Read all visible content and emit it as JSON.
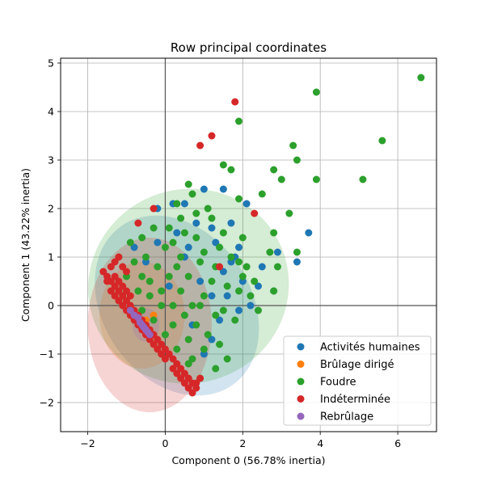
{
  "chart_data": {
    "type": "scatter",
    "title": "Row principal coordinates",
    "xlabel": "Component 0 (56.78% inertia)",
    "ylabel": "Component 1 (43.22% inertia)",
    "xlim": [
      -2.7,
      7.0
    ],
    "ylim": [
      -2.6,
      5.1
    ],
    "xticks": [
      -2,
      0,
      2,
      4,
      6
    ],
    "yticks": [
      -2,
      -1,
      0,
      1,
      2,
      3,
      4,
      5
    ],
    "grid": true,
    "legend_position": "lower-right",
    "series": [
      {
        "name": "Activités humaines",
        "color": "#1f77b4",
        "ellipse": {
          "cx": 0.3,
          "cy": 0.0,
          "rx": 1.9,
          "ry": 2.0,
          "angle": -35
        },
        "points": [
          [
            1.0,
            2.4
          ],
          [
            1.5,
            2.4
          ],
          [
            2.1,
            2.1
          ],
          [
            1.7,
            1.7
          ],
          [
            1.2,
            1.6
          ],
          [
            0.8,
            1.7
          ],
          [
            0.5,
            2.1
          ],
          [
            0.2,
            2.1
          ],
          [
            -0.2,
            2.0
          ],
          [
            1.9,
            1.2
          ],
          [
            1.7,
            0.9
          ],
          [
            2.5,
            0.8
          ],
          [
            2.9,
            1.1
          ],
          [
            3.4,
            0.9
          ],
          [
            3.7,
            1.5
          ],
          [
            2.4,
            0.4
          ],
          [
            2.8,
            0.3
          ],
          [
            2.2,
            0.0
          ],
          [
            1.9,
            -0.1
          ],
          [
            1.4,
            -0.3
          ],
          [
            1.2,
            -0.7
          ],
          [
            1.0,
            -1.0
          ],
          [
            1.2,
            0.2
          ],
          [
            0.9,
            0.5
          ],
          [
            0.5,
            1.0
          ],
          [
            0.3,
            1.5
          ],
          [
            -0.2,
            1.3
          ],
          [
            1.5,
            0.7
          ],
          [
            0.7,
            -0.4
          ],
          [
            -0.5,
            0.9
          ],
          [
            -0.8,
            1.2
          ],
          [
            0.1,
            0.4
          ],
          [
            1.3,
            1.3
          ],
          [
            1.8,
            1.0
          ],
          [
            2.0,
            0.5
          ],
          [
            1.6,
            0.2
          ],
          [
            0.6,
            1.2
          ]
        ]
      },
      {
        "name": "Brûlage dirigé",
        "color": "#ff7f0e",
        "ellipse": {
          "cx": -0.6,
          "cy": -0.2,
          "rx": 1.1,
          "ry": 1.1,
          "angle": 0
        },
        "points": [
          [
            -0.5,
            -0.3
          ],
          [
            -0.4,
            -0.5
          ],
          [
            -0.3,
            -0.2
          ]
        ]
      },
      {
        "name": "Foudre",
        "color": "#2ca02c",
        "ellipse": {
          "cx": 0.6,
          "cy": 0.4,
          "rx": 2.6,
          "ry": 2.0,
          "angle": -20
        },
        "points": [
          [
            6.6,
            4.7
          ],
          [
            3.9,
            4.4
          ],
          [
            5.6,
            3.4
          ],
          [
            1.9,
            3.8
          ],
          [
            3.3,
            3.3
          ],
          [
            3.4,
            3.0
          ],
          [
            1.5,
            2.9
          ],
          [
            1.7,
            2.8
          ],
          [
            2.8,
            2.8
          ],
          [
            3.0,
            2.6
          ],
          [
            3.9,
            2.6
          ],
          [
            5.1,
            2.6
          ],
          [
            0.6,
            2.5
          ],
          [
            1.9,
            2.2
          ],
          [
            2.5,
            2.3
          ],
          [
            3.2,
            1.9
          ],
          [
            2.8,
            1.5
          ],
          [
            3.4,
            1.1
          ],
          [
            2.0,
            1.4
          ],
          [
            2.7,
            1.1
          ],
          [
            2.9,
            0.8
          ],
          [
            2.8,
            0.3
          ],
          [
            2.4,
            -0.1
          ],
          [
            2.2,
            0.2
          ],
          [
            1.9,
            0.9
          ],
          [
            2.0,
            0.6
          ],
          [
            1.6,
            0.4
          ],
          [
            1.3,
            0.8
          ],
          [
            1.0,
            1.1
          ],
          [
            1.1,
            2.0
          ],
          [
            0.7,
            2.3
          ],
          [
            0.3,
            2.1
          ],
          [
            0.1,
            1.6
          ],
          [
            0.4,
            1.8
          ],
          [
            0.8,
            1.9
          ],
          [
            1.2,
            1.8
          ],
          [
            1.5,
            1.5
          ],
          [
            1.4,
            1.2
          ],
          [
            0.9,
            0.9
          ],
          [
            0.6,
            0.6
          ],
          [
            0.3,
            0.8
          ],
          [
            0.0,
            1.2
          ],
          [
            -0.3,
            1.6
          ],
          [
            -0.6,
            1.4
          ],
          [
            -0.9,
            1.3
          ],
          [
            -1.2,
            1.0
          ],
          [
            -1.0,
            0.6
          ],
          [
            -0.7,
            0.3
          ],
          [
            -0.4,
            0.5
          ],
          [
            -0.1,
            0.3
          ],
          [
            0.2,
            0.0
          ],
          [
            0.5,
            -0.2
          ],
          [
            0.8,
            -0.4
          ],
          [
            1.1,
            -0.6
          ],
          [
            1.4,
            -0.8
          ],
          [
            1.6,
            -1.1
          ],
          [
            1.3,
            -1.3
          ],
          [
            0.9,
            -1.5
          ],
          [
            0.6,
            -1.2
          ],
          [
            0.3,
            -0.9
          ],
          [
            0.0,
            -0.6
          ],
          [
            -0.3,
            -0.3
          ],
          [
            -0.6,
            -0.1
          ],
          [
            1.8,
            -0.3
          ],
          [
            1.5,
            -0.1
          ],
          [
            1.0,
            0.2
          ],
          [
            0.7,
            0.0
          ],
          [
            0.4,
            0.3
          ],
          [
            -0.2,
            0.8
          ],
          [
            -0.5,
            1.0
          ],
          [
            -0.8,
            0.9
          ],
          [
            0.2,
            1.3
          ],
          [
            0.5,
            1.5
          ],
          [
            0.8,
            1.4
          ],
          [
            1.7,
            1.0
          ],
          [
            2.1,
            0.8
          ],
          [
            1.2,
            0.5
          ],
          [
            0.9,
            0.0
          ],
          [
            1.3,
            -0.2
          ],
          [
            0.6,
            -0.7
          ],
          [
            0.2,
            -0.4
          ],
          [
            -0.1,
            0.0
          ],
          [
            -0.4,
            0.2
          ],
          [
            1.0,
            -0.9
          ],
          [
            0.7,
            -1.1
          ],
          [
            1.9,
            0.3
          ],
          [
            2.3,
            0.5
          ],
          [
            0.4,
            1.0
          ],
          [
            0.1,
            0.6
          ],
          [
            -0.6,
            0.6
          ]
        ]
      },
      {
        "name": "Indéterminée",
        "color": "#d62728",
        "ellipse": {
          "cx": -0.4,
          "cy": -0.4,
          "rx": 1.6,
          "ry": 1.8,
          "angle": 0
        },
        "points": [
          [
            1.8,
            4.2
          ],
          [
            1.2,
            3.5
          ],
          [
            0.9,
            3.3
          ],
          [
            2.3,
            1.9
          ],
          [
            -0.3,
            2.0
          ],
          [
            -0.7,
            1.7
          ],
          [
            1.4,
            0.8
          ],
          [
            -1.6,
            0.7
          ],
          [
            -1.5,
            0.6
          ],
          [
            -1.4,
            0.5
          ],
          [
            -1.3,
            0.4
          ],
          [
            -1.2,
            0.3
          ],
          [
            -1.1,
            0.2
          ],
          [
            -1.0,
            0.1
          ],
          [
            -0.9,
            0.0
          ],
          [
            -0.8,
            -0.1
          ],
          [
            -0.7,
            -0.2
          ],
          [
            -0.6,
            -0.3
          ],
          [
            -0.5,
            -0.4
          ],
          [
            -0.4,
            -0.5
          ],
          [
            -0.3,
            -0.6
          ],
          [
            -0.2,
            -0.7
          ],
          [
            -0.1,
            -0.8
          ],
          [
            0.0,
            -0.9
          ],
          [
            0.1,
            -1.0
          ],
          [
            0.2,
            -1.1
          ],
          [
            0.3,
            -1.2
          ],
          [
            0.4,
            -1.3
          ],
          [
            0.5,
            -1.4
          ],
          [
            0.6,
            -1.5
          ],
          [
            0.7,
            -1.6
          ],
          [
            0.8,
            -1.7
          ],
          [
            -1.5,
            0.5
          ],
          [
            -1.3,
            0.6
          ],
          [
            -1.2,
            0.5
          ],
          [
            -1.1,
            0.4
          ],
          [
            -1.0,
            0.3
          ],
          [
            -0.9,
            0.2
          ],
          [
            -1.4,
            0.8
          ],
          [
            -1.3,
            0.9
          ],
          [
            -1.2,
            1.0
          ],
          [
            -1.1,
            0.8
          ],
          [
            -1.0,
            0.7
          ],
          [
            0.5,
            -1.6
          ],
          [
            0.6,
            -1.7
          ],
          [
            0.7,
            -1.8
          ],
          [
            0.8,
            -1.6
          ],
          [
            0.9,
            -1.5
          ],
          [
            0.4,
            -1.5
          ],
          [
            0.3,
            -1.4
          ],
          [
            0.2,
            -1.3
          ],
          [
            0.0,
            -1.1
          ],
          [
            -0.1,
            -1.0
          ],
          [
            -0.2,
            -0.9
          ],
          [
            -0.3,
            -0.8
          ],
          [
            -0.4,
            -0.7
          ],
          [
            -0.5,
            -0.6
          ],
          [
            -0.6,
            -0.5
          ],
          [
            -0.7,
            -0.4
          ],
          [
            -0.8,
            -0.3
          ],
          [
            -0.9,
            -0.2
          ],
          [
            -1.0,
            -0.1
          ],
          [
            -1.1,
            0.0
          ],
          [
            -1.2,
            0.1
          ],
          [
            -1.3,
            0.2
          ],
          [
            -1.4,
            0.3
          ]
        ]
      },
      {
        "name": "Rebrûlage",
        "color": "#9467bd",
        "ellipse": {
          "cx": -0.5,
          "cy": -0.4,
          "rx": 0.35,
          "ry": 0.35,
          "angle": 0
        },
        "points": [
          [
            -0.9,
            -0.1
          ],
          [
            -0.8,
            -0.2
          ],
          [
            -0.7,
            -0.25
          ],
          [
            -0.65,
            -0.35
          ],
          [
            -0.6,
            -0.4
          ],
          [
            -0.55,
            -0.45
          ],
          [
            -0.5,
            -0.5
          ],
          [
            -0.45,
            -0.55
          ],
          [
            -0.4,
            -0.6
          ]
        ]
      }
    ]
  }
}
